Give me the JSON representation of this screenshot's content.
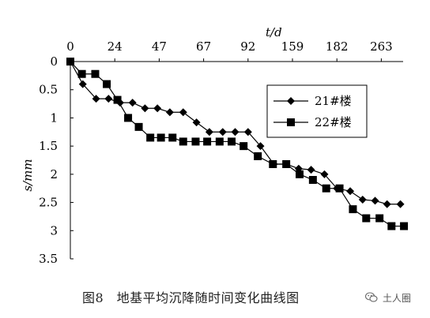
{
  "chart_data": {
    "type": "line",
    "title": "",
    "xlabel": "t/d",
    "ylabel": "s/mm",
    "x_tick_labels": [
      "0",
      "24",
      "47",
      "67",
      "92",
      "159",
      "182",
      "263"
    ],
    "y_tick_labels": [
      "0",
      "0.5",
      "1",
      "1.5",
      "2",
      "2.5",
      "3",
      "3.5"
    ],
    "ylim": [
      0,
      3.5
    ],
    "y_inverted": true,
    "x_axis_position": "top",
    "grid": false,
    "legend_position": "upper-right-inside",
    "series": [
      {
        "name": "21#楼",
        "marker": "diamond",
        "x_index": [
          0,
          0.28,
          0.58,
          0.86,
          1.12,
          1.4,
          1.68,
          1.96,
          2.24,
          2.54,
          2.84,
          3.13,
          3.43,
          3.71,
          4.0,
          4.28,
          4.58,
          4.86,
          5.14,
          5.42,
          5.72,
          6.0,
          6.3,
          6.58,
          6.86,
          7.13,
          7.43
        ],
        "values": [
          0,
          0.4,
          0.66,
          0.66,
          0.73,
          0.73,
          0.83,
          0.83,
          0.9,
          0.9,
          1.08,
          1.25,
          1.25,
          1.25,
          1.25,
          1.5,
          1.82,
          1.82,
          1.9,
          1.92,
          2.0,
          2.25,
          2.3,
          2.45,
          2.47,
          2.53,
          2.53
        ]
      },
      {
        "name": "22#楼",
        "marker": "square",
        "x_index": [
          0,
          0.26,
          0.56,
          0.82,
          1.06,
          1.3,
          1.54,
          1.8,
          2.04,
          2.3,
          2.54,
          2.82,
          3.08,
          3.36,
          3.63,
          3.9,
          4.22,
          4.56,
          4.86,
          5.16,
          5.46,
          5.76,
          6.06,
          6.36,
          6.66,
          6.96,
          7.23,
          7.51
        ],
        "values": [
          0,
          0.22,
          0.22,
          0.4,
          0.68,
          1.0,
          1.16,
          1.35,
          1.35,
          1.35,
          1.42,
          1.42,
          1.42,
          1.42,
          1.42,
          1.5,
          1.68,
          1.82,
          1.82,
          2.0,
          2.1,
          2.25,
          2.25,
          2.62,
          2.78,
          2.78,
          2.92,
          2.92
        ]
      }
    ]
  },
  "caption": "图8　地基平均沉降随时间变化曲线图",
  "watermark": "土人圈",
  "watermark_icon": "wechat-icon",
  "colors": {
    "line": "#000000",
    "axis": "#000000",
    "background": "#ffffff"
  }
}
